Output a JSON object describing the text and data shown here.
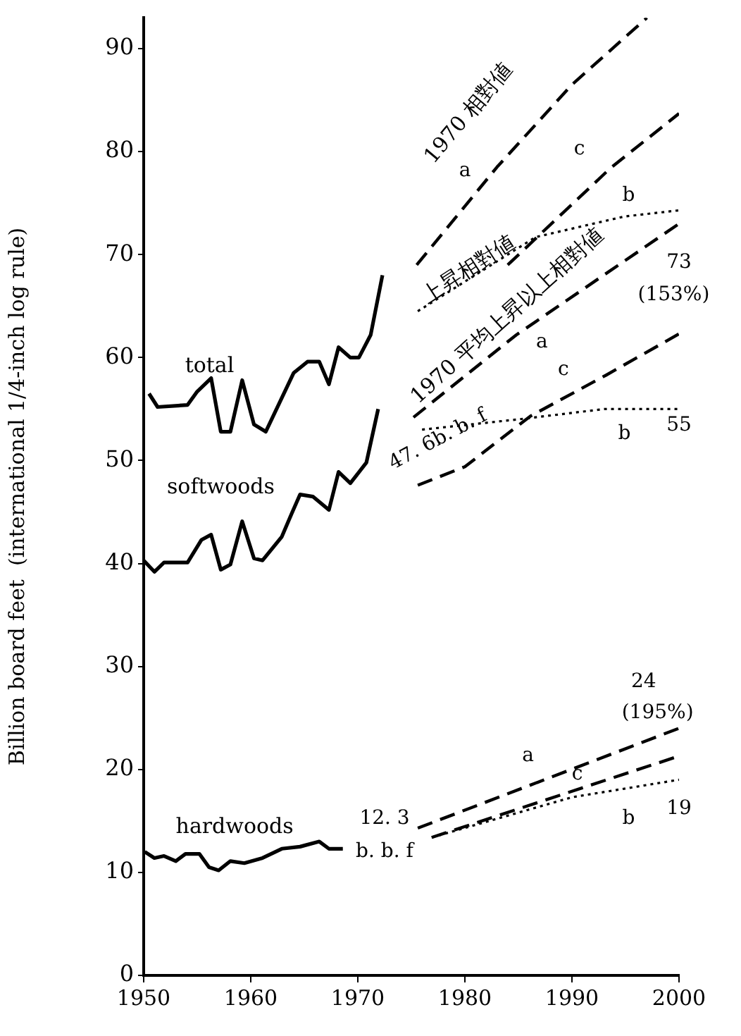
{
  "chart_data": {
    "type": "line",
    "ylabel": "Billion board feet  (international 1/4-inch log rule)",
    "xlim": [
      1950,
      2000
    ],
    "xticks": [
      1950,
      1960,
      1970,
      1980,
      1990,
      2000
    ],
    "ylim": [
      0,
      93
    ],
    "yticks": [
      0,
      10,
      20,
      30,
      40,
      50,
      60,
      70,
      80,
      90
    ],
    "grid": false,
    "legend": false,
    "marker": "none",
    "series": [
      {
        "name": "total",
        "color": "#000000",
        "line_style": "solid",
        "x": [
          1950.5,
          1951.3,
          1954.1,
          1955,
          1956.3,
          1957.2,
          1958.1,
          1959.2,
          1960.3,
          1961.4,
          1964,
          1965.3,
          1966.4,
          1967.3,
          1968.2,
          1969.3,
          1970.1,
          1971.2,
          1972.3
        ],
        "values": [
          56.5,
          55.2,
          55.4,
          56.7,
          58,
          52.8,
          52.8,
          57.8,
          53.5,
          52.8,
          58.5,
          59.6,
          59.6,
          57.4,
          61,
          60,
          60,
          62.2,
          68
        ]
      },
      {
        "name": "softwoods",
        "color": "#000000",
        "line_style": "solid",
        "x": [
          1950,
          1951,
          1951.9,
          1954.1,
          1955.4,
          1956.3,
          1957.2,
          1958.1,
          1959.2,
          1960.3,
          1961.1,
          1962.9,
          1963.8,
          1964.6,
          1965.8,
          1967.3,
          1968.2,
          1969.3,
          1970.8,
          1971.9
        ],
        "values": [
          40.3,
          39.2,
          40.1,
          40.1,
          42.3,
          42.8,
          39.4,
          39.9,
          44.1,
          40.5,
          40.3,
          42.6,
          44.8,
          46.7,
          46.5,
          45.2,
          48.9,
          47.8,
          49.8,
          55
        ]
      },
      {
        "name": "hardwoods",
        "color": "#000000",
        "line_style": "solid",
        "x": [
          1950.1,
          1951,
          1951.9,
          1953,
          1953.9,
          1955.2,
          1956.1,
          1957,
          1958.1,
          1959.4,
          1961.1,
          1962.9,
          1964.6,
          1966.4,
          1967.3,
          1968.6
        ],
        "values": [
          12,
          11.4,
          11.6,
          11.1,
          11.8,
          11.8,
          10.5,
          10.2,
          11.1,
          10.9,
          11.4,
          12.3,
          12.5,
          13,
          12.3,
          12.3
        ]
      },
      {
        "color": "#000000",
        "line_style": "dashed",
        "x": [
          1975.5,
          1983,
          1990,
          1997
        ],
        "values": [
          69,
          78.5,
          86.5,
          93
        ]
      },
      {
        "color": "#000000",
        "line_style": "dashed",
        "x": [
          1984,
          1993.6,
          2000
        ],
        "values": [
          69,
          78.4,
          83.7
        ]
      },
      {
        "color": "#000000",
        "line_style": "dotted",
        "x": [
          1975.6,
          1986.6,
          1994.9,
          2000
        ],
        "values": [
          64.5,
          71.7,
          73.7,
          74.3
        ]
      },
      {
        "color": "#000000",
        "line_style": "dashed",
        "x": [
          1975.2,
          1984.8,
          2000
        ],
        "values": [
          54.2,
          62.2,
          73
        ]
      },
      {
        "color": "#000000",
        "line_style": "dashed",
        "x": [
          1975.6,
          1980,
          1986.1,
          1993.2,
          2000
        ],
        "values": [
          47.6,
          49.4,
          54.3,
          58.3,
          62.3
        ]
      },
      {
        "color": "#000000",
        "line_style": "dotted",
        "x": [
          1976,
          1985,
          1993,
          2000
        ],
        "values": [
          53,
          54,
          55,
          55
        ]
      },
      {
        "color": "#000000",
        "line_style": "dashed",
        "x": [
          1975.6,
          2000
        ],
        "values": [
          14.3,
          24
        ]
      },
      {
        "color": "#000000",
        "line_style": "dashed",
        "x": [
          1976.9,
          2000
        ],
        "values": [
          13.4,
          21.3
        ]
      },
      {
        "color": "#000000",
        "line_style": "dotted",
        "x": [
          1976.9,
          1990,
          2000
        ],
        "values": [
          13.4,
          17.3,
          19
        ]
      }
    ],
    "annotations": [
      "1970 相對値",
      "上昇相對値",
      "1970 平均上昇以上相對値",
      "47. 6b. b. f",
      "a",
      "c",
      "b",
      "73",
      "(153%)",
      "a",
      "c",
      "b",
      "55",
      "12. 3",
      "b. b. f",
      "24",
      "(195%)",
      "a",
      "c",
      "b",
      "19"
    ]
  }
}
